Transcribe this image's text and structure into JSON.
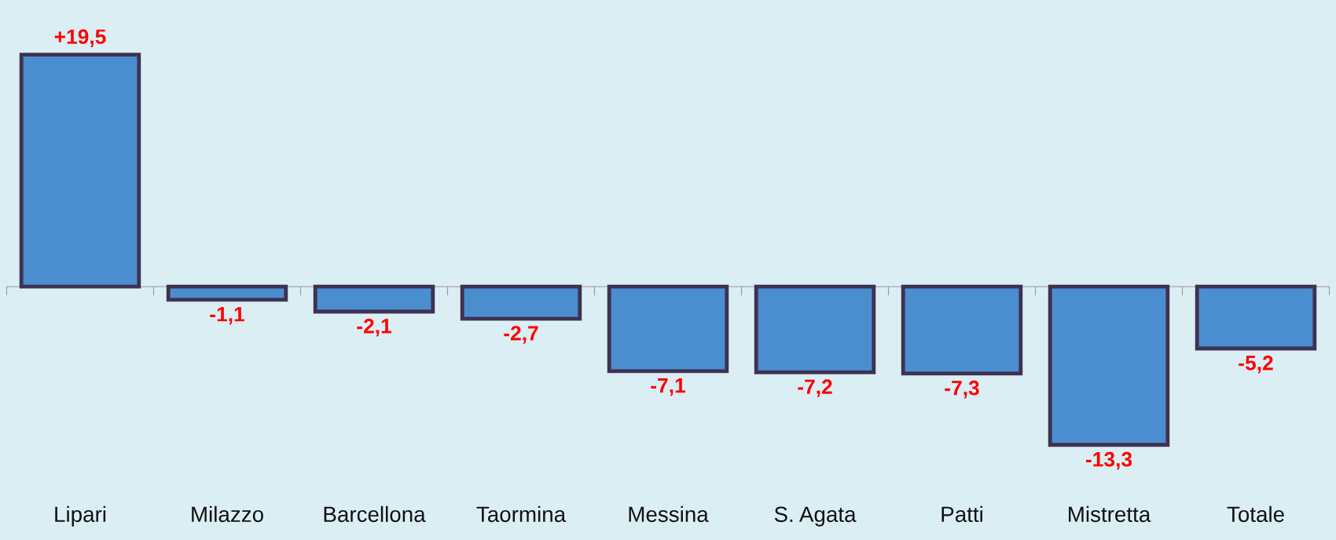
{
  "chart_data": {
    "type": "bar",
    "categories": [
      "Lipari",
      "Milazzo",
      "Barcellona",
      "Taormina",
      "Messina",
      "S. Agata",
      "Patti",
      "Mistretta",
      "Totale"
    ],
    "values": [
      19.5,
      -1.1,
      -2.1,
      -2.7,
      -7.1,
      -7.2,
      -7.3,
      -13.3,
      -5.2
    ],
    "value_labels": [
      "+19,5",
      "-1,1",
      "-2,1",
      "-2,7",
      "-7,1",
      "-7,2",
      "-7,3",
      "-13,3",
      "-5,2"
    ],
    "color": "#4a8ed0",
    "tick_labels": "x",
    "grid": false,
    "legend": false
  }
}
